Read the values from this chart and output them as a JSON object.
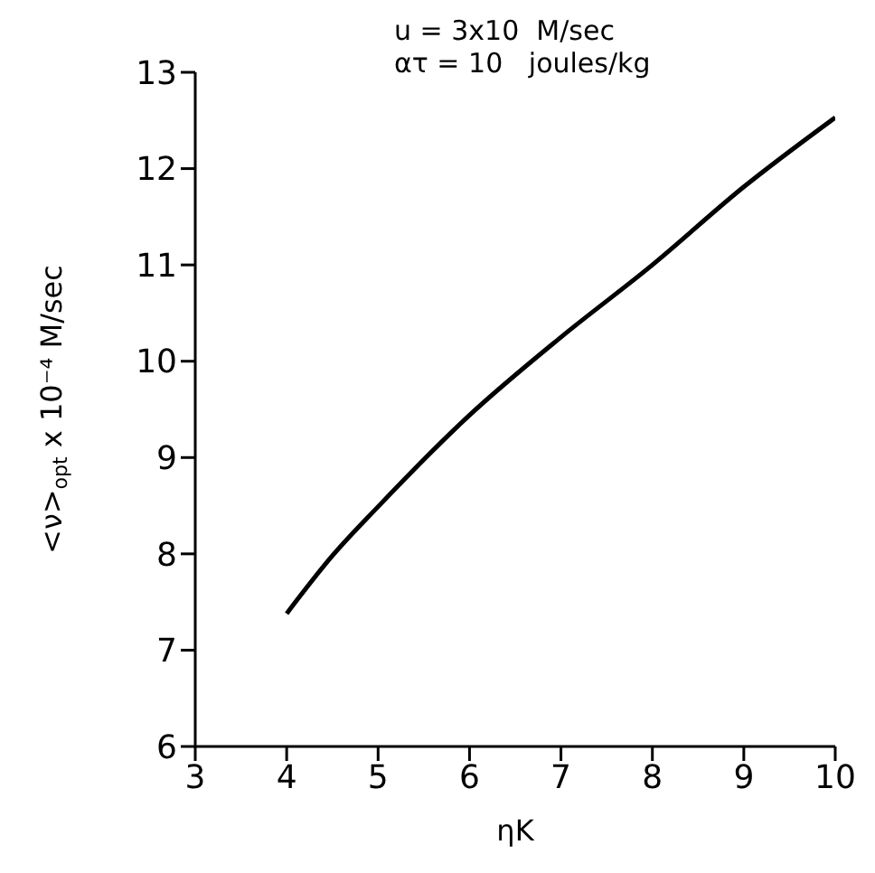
{
  "chart_data": {
    "type": "line",
    "xlabel": "ηK",
    "ylabel": "<ν>$_{opt}$ x 10⁻⁴ M/sec",
    "annotations": [
      "u = 3x10  M/sec",
      "ατ = 10   joules/kg"
    ],
    "x": [
      4,
      4.5,
      5,
      6,
      7,
      8,
      9,
      10
    ],
    "series": [
      {
        "color": "#000000",
        "values": [
          7.38,
          7.98,
          8.49,
          9.44,
          10.25,
          11.0,
          11.81,
          12.53
        ]
      }
    ],
    "xlim": [
      3,
      10
    ],
    "xticks": [
      3,
      4,
      5,
      6,
      7,
      8,
      9,
      10
    ],
    "ylim": [
      6,
      13
    ],
    "yticks": [
      6,
      7,
      8,
      9,
      10,
      11,
      12,
      13
    ],
    "grid": false,
    "legend": false,
    "marker": "none",
    "line_style": "solid"
  }
}
